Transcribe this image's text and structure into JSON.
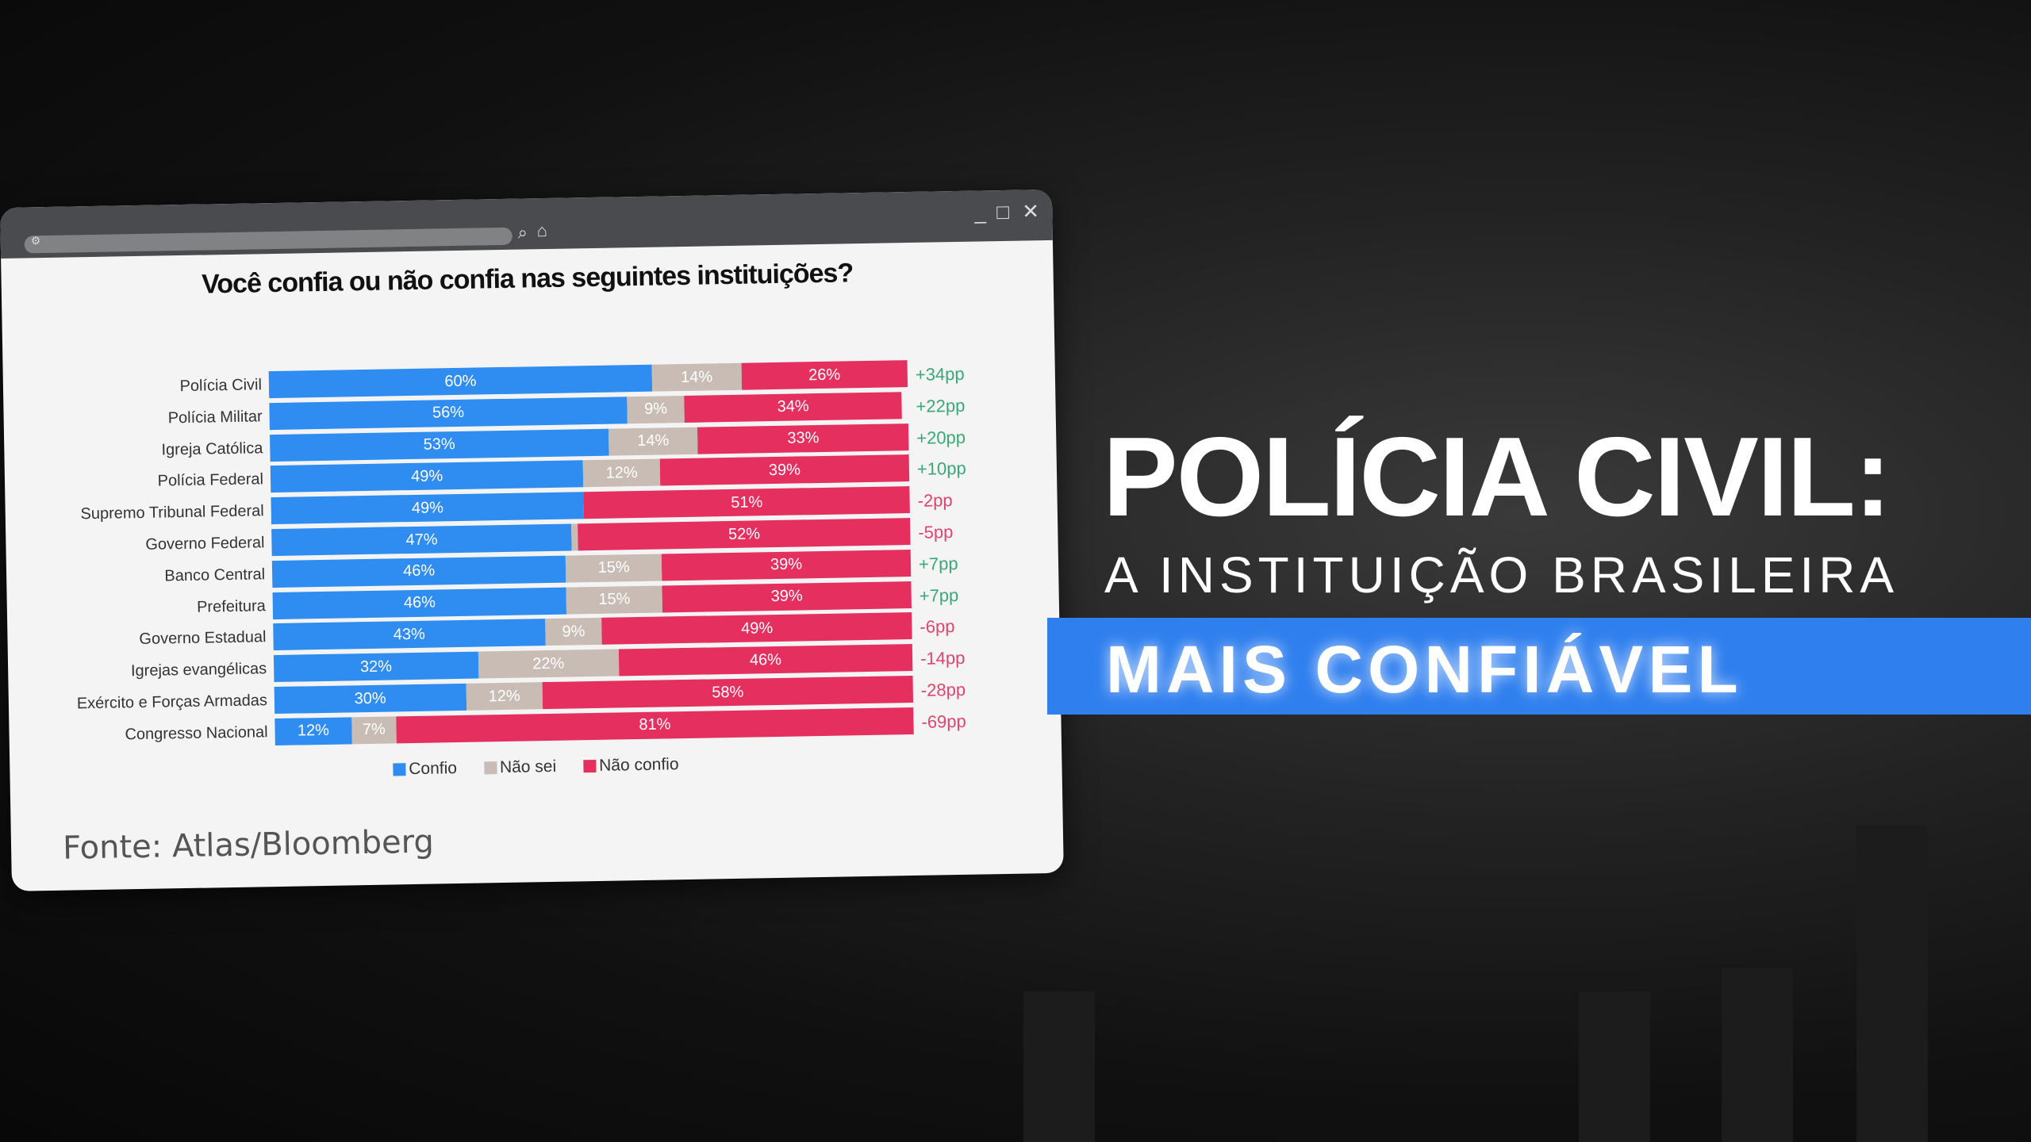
{
  "window": {
    "controls": {
      "minimize": "_",
      "maximize": "□",
      "close": "✕"
    },
    "icons": [
      "settings-icon",
      "search-icon",
      "home-icon"
    ]
  },
  "headline": {
    "line1": "POLÍCIA CIVIL:",
    "line2": "A INSTITUIÇÃO BRASILEIRA",
    "line3": "MAIS CONFIÁVEL"
  },
  "source": "Fonte: Atlas/Bloomberg",
  "colors": {
    "confio": "#2f8cf0",
    "nao_sei": "#c8bcb4",
    "nao_confio": "#e5305f",
    "positive": "#3aa878",
    "negative": "#e0456d",
    "band": "#2f7fef"
  },
  "chart_data": {
    "type": "bar",
    "orientation": "horizontal-stacked-100",
    "title": "Você confia ou não confia nas seguintes instituições?",
    "categories": [
      "Polícia Civil",
      "Polícia Militar",
      "Igreja Católica",
      "Polícia Federal",
      "Supremo Tribunal Federal",
      "Governo Federal",
      "Banco Central",
      "Prefeitura",
      "Governo Estadual",
      "Igrejas evangélicas",
      "Exército e Forças Armadas",
      "Congresso Nacional"
    ],
    "series": [
      {
        "name": "Confio",
        "values": [
          60,
          56,
          53,
          49,
          49,
          47,
          46,
          46,
          43,
          32,
          30,
          12
        ]
      },
      {
        "name": "Não sei",
        "values": [
          14,
          9,
          14,
          12,
          0,
          1,
          15,
          15,
          9,
          22,
          12,
          7
        ]
      },
      {
        "name": "Não confio",
        "values": [
          26,
          34,
          33,
          39,
          51,
          52,
          39,
          39,
          49,
          46,
          58,
          81
        ]
      }
    ],
    "net_labels": [
      "+34pp",
      "+22pp",
      "+20pp",
      "+10pp",
      "-2pp",
      "-5pp",
      "+7pp",
      "+7pp",
      "-6pp",
      "-14pp",
      "-28pp",
      "-69pp"
    ],
    "legend": "bottom"
  }
}
